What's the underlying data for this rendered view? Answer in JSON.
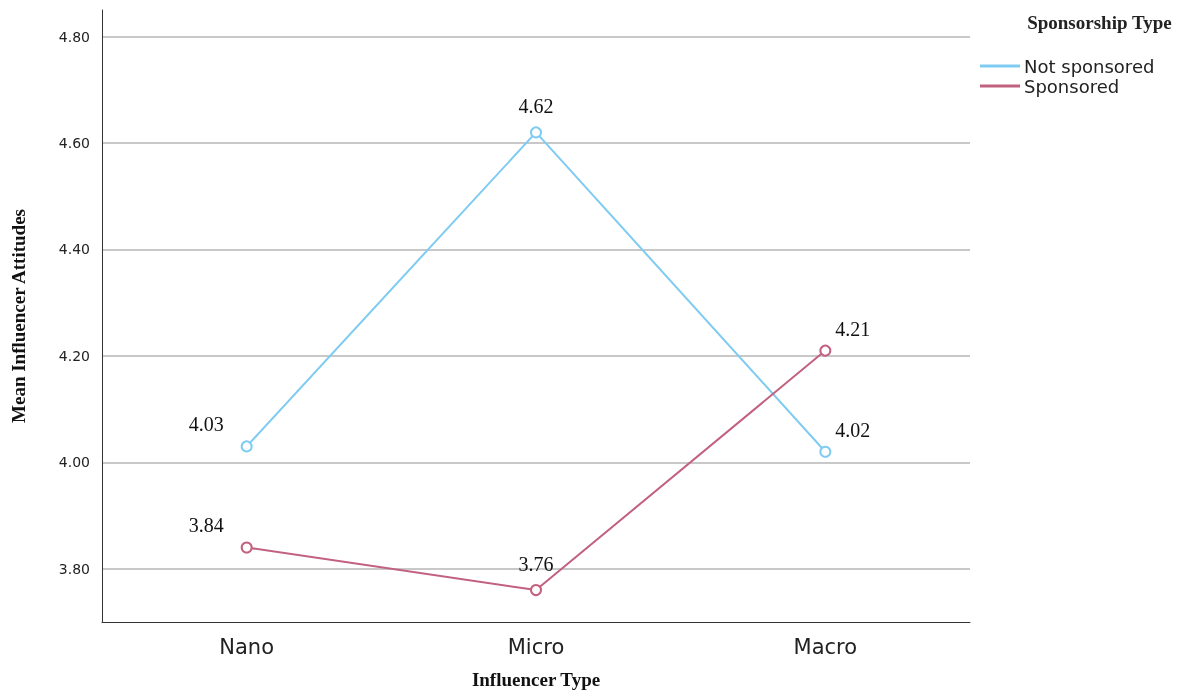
{
  "chart_data": {
    "type": "line",
    "xlabel": "Influencer Type",
    "ylabel": "Mean Influencer Attitudes",
    "legend_title": "Sponsorship Type",
    "categories": [
      "Nano",
      "Micro",
      "Macro"
    ],
    "series": [
      {
        "name": "Not sponsored",
        "color": "#7fcbf2",
        "values": [
          4.03,
          4.62,
          4.02
        ]
      },
      {
        "name": "Sponsored",
        "color": "#c2607f",
        "values": [
          3.84,
          3.76,
          4.21
        ]
      }
    ],
    "ylim": [
      3.7,
      4.85
    ],
    "yticks": [
      {
        "value": 3.8,
        "label": "3.80"
      },
      {
        "value": 4.0,
        "label": "4.00"
      },
      {
        "value": 4.2,
        "label": "4.20"
      },
      {
        "value": 4.4,
        "label": "4.40"
      },
      {
        "value": 4.6,
        "label": "4.60"
      },
      {
        "value": 4.8,
        "label": "4.80"
      }
    ],
    "grid": "y",
    "legend": "top right",
    "marker": "circle",
    "line_style": "solid",
    "data_labels": true
  }
}
